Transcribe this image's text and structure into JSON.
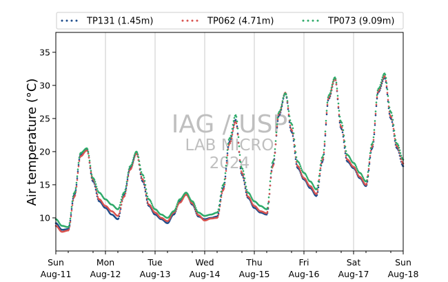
{
  "chart_data": {
    "type": "scatter",
    "title": "",
    "xlabel": "",
    "ylabel": "Air temperature (°C)",
    "xlim": [
      "2024-08-11 00:00",
      "2024-08-18 00:00"
    ],
    "ylim": [
      5,
      38
    ],
    "yticks": [
      10,
      15,
      20,
      25,
      30,
      35
    ],
    "xticks": [
      {
        "day": "Sun",
        "date": "Aug-11"
      },
      {
        "day": "Mon",
        "date": "Aug-12"
      },
      {
        "day": "Tue",
        "date": "Aug-13"
      },
      {
        "day": "Wed",
        "date": "Aug-14"
      },
      {
        "day": "Thu",
        "date": "Aug-15"
      },
      {
        "day": "Fri",
        "date": "Aug-16"
      },
      {
        "day": "Sat",
        "date": "Aug-17"
      },
      {
        "day": "Sun",
        "date": "Aug-18"
      }
    ],
    "grid": "vertical",
    "legend_position": "top",
    "watermark": [
      "IAG / USP",
      "LAB MICRO",
      "2024"
    ],
    "series": [
      {
        "name": "TP131 (1.45m)",
        "color": "#1f4e8c",
        "points": [
          [
            "2024-08-11 00:00",
            9.2
          ],
          [
            "2024-08-11 03:00",
            8.2
          ],
          [
            "2024-08-11 06:00",
            8.3
          ],
          [
            "2024-08-11 09:00",
            13.5
          ],
          [
            "2024-08-11 12:00",
            19.5
          ],
          [
            "2024-08-11 15:00",
            20.3
          ],
          [
            "2024-08-11 18:00",
            15.5
          ],
          [
            "2024-08-11 21:00",
            12.5
          ],
          [
            "2024-08-12 00:00",
            11.5
          ],
          [
            "2024-08-12 03:00",
            10.5
          ],
          [
            "2024-08-12 06:00",
            9.8
          ],
          [
            "2024-08-12 09:00",
            13.5
          ],
          [
            "2024-08-12 12:00",
            17.5
          ],
          [
            "2024-08-12 15:00",
            19.8
          ],
          [
            "2024-08-12 18:00",
            15.5
          ],
          [
            "2024-08-12 21:00",
            11.8
          ],
          [
            "2024-08-13 00:00",
            10.5
          ],
          [
            "2024-08-13 03:00",
            9.8
          ],
          [
            "2024-08-13 06:00",
            9.2
          ],
          [
            "2024-08-13 09:00",
            10.5
          ],
          [
            "2024-08-13 12:00",
            12.5
          ],
          [
            "2024-08-13 15:00",
            13.8
          ],
          [
            "2024-08-13 18:00",
            12.0
          ],
          [
            "2024-08-13 21:00",
            10.2
          ],
          [
            "2024-08-14 00:00",
            9.8
          ],
          [
            "2024-08-14 03:00",
            10.0
          ],
          [
            "2024-08-14 06:00",
            10.2
          ],
          [
            "2024-08-14 09:00",
            14.5
          ],
          [
            "2024-08-14 12:00",
            21.5
          ],
          [
            "2024-08-14 15:00",
            24.8
          ],
          [
            "2024-08-14 18:00",
            16.5
          ],
          [
            "2024-08-14 21:00",
            13.0
          ],
          [
            "2024-08-15 00:00",
            11.5
          ],
          [
            "2024-08-15 03:00",
            10.8
          ],
          [
            "2024-08-15 06:00",
            10.5
          ],
          [
            "2024-08-15 09:00",
            18.0
          ],
          [
            "2024-08-15 12:00",
            25.5
          ],
          [
            "2024-08-15 15:00",
            28.8
          ],
          [
            "2024-08-15 18:00",
            23.0
          ],
          [
            "2024-08-15 21:00",
            17.5
          ],
          [
            "2024-08-16 00:00",
            15.8
          ],
          [
            "2024-08-16 03:00",
            14.5
          ],
          [
            "2024-08-16 06:00",
            13.3
          ],
          [
            "2024-08-16 09:00",
            18.5
          ],
          [
            "2024-08-16 12:00",
            28.0
          ],
          [
            "2024-08-16 15:00",
            31.0
          ],
          [
            "2024-08-16 18:00",
            23.5
          ],
          [
            "2024-08-16 21:00",
            18.5
          ],
          [
            "2024-08-17 00:00",
            17.5
          ],
          [
            "2024-08-17 03:00",
            16.0
          ],
          [
            "2024-08-17 06:00",
            14.8
          ],
          [
            "2024-08-17 09:00",
            20.5
          ],
          [
            "2024-08-17 12:00",
            29.0
          ],
          [
            "2024-08-17 15:00",
            31.2
          ],
          [
            "2024-08-17 18:00",
            25.0
          ],
          [
            "2024-08-17 21:00",
            20.5
          ],
          [
            "2024-08-18 00:00",
            17.8
          ]
        ]
      },
      {
        "name": "TP062 (4.71m)",
        "color": "#d9534f",
        "points": [
          [
            "2024-08-11 00:00",
            8.8
          ],
          [
            "2024-08-11 03:00",
            7.9
          ],
          [
            "2024-08-11 06:00",
            8.1
          ],
          [
            "2024-08-11 09:00",
            13.2
          ],
          [
            "2024-08-11 12:00",
            19.3
          ],
          [
            "2024-08-11 15:00",
            20.2
          ],
          [
            "2024-08-11 18:00",
            15.8
          ],
          [
            "2024-08-11 21:00",
            12.8
          ],
          [
            "2024-08-12 00:00",
            11.8
          ],
          [
            "2024-08-12 03:00",
            11.0
          ],
          [
            "2024-08-12 06:00",
            10.3
          ],
          [
            "2024-08-12 09:00",
            13.2
          ],
          [
            "2024-08-12 12:00",
            17.3
          ],
          [
            "2024-08-12 15:00",
            19.7
          ],
          [
            "2024-08-12 18:00",
            15.8
          ],
          [
            "2024-08-12 21:00",
            12.0
          ],
          [
            "2024-08-13 00:00",
            10.8
          ],
          [
            "2024-08-13 03:00",
            10.0
          ],
          [
            "2024-08-13 06:00",
            9.5
          ],
          [
            "2024-08-13 09:00",
            10.8
          ],
          [
            "2024-08-13 12:00",
            12.3
          ],
          [
            "2024-08-13 15:00",
            13.5
          ],
          [
            "2024-08-13 18:00",
            12.2
          ],
          [
            "2024-08-13 21:00",
            10.4
          ],
          [
            "2024-08-14 00:00",
            9.6
          ],
          [
            "2024-08-14 03:00",
            9.9
          ],
          [
            "2024-08-14 06:00",
            10.0
          ],
          [
            "2024-08-14 09:00",
            14.2
          ],
          [
            "2024-08-14 12:00",
            21.2
          ],
          [
            "2024-08-14 15:00",
            24.5
          ],
          [
            "2024-08-14 18:00",
            16.8
          ],
          [
            "2024-08-14 21:00",
            13.2
          ],
          [
            "2024-08-15 00:00",
            11.8
          ],
          [
            "2024-08-15 03:00",
            11.0
          ],
          [
            "2024-08-15 06:00",
            10.7
          ],
          [
            "2024-08-15 09:00",
            17.8
          ],
          [
            "2024-08-15 12:00",
            25.8
          ],
          [
            "2024-08-15 15:00",
            28.9
          ],
          [
            "2024-08-15 18:00",
            23.3
          ],
          [
            "2024-08-15 21:00",
            17.8
          ],
          [
            "2024-08-16 00:00",
            16.0
          ],
          [
            "2024-08-16 03:00",
            14.8
          ],
          [
            "2024-08-16 06:00",
            13.6
          ],
          [
            "2024-08-16 09:00",
            18.8
          ],
          [
            "2024-08-16 12:00",
            28.2
          ],
          [
            "2024-08-16 15:00",
            31.0
          ],
          [
            "2024-08-16 18:00",
            23.8
          ],
          [
            "2024-08-16 21:00",
            18.8
          ],
          [
            "2024-08-17 00:00",
            17.7
          ],
          [
            "2024-08-17 03:00",
            16.2
          ],
          [
            "2024-08-17 06:00",
            15.0
          ],
          [
            "2024-08-17 09:00",
            20.8
          ],
          [
            "2024-08-17 12:00",
            29.2
          ],
          [
            "2024-08-17 15:00",
            31.4
          ],
          [
            "2024-08-17 18:00",
            25.3
          ],
          [
            "2024-08-17 21:00",
            20.8
          ],
          [
            "2024-08-18 00:00",
            18.2
          ]
        ]
      },
      {
        "name": "TP073 (9.09m)",
        "color": "#2eaa6a",
        "points": [
          [
            "2024-08-11 00:00",
            9.8
          ],
          [
            "2024-08-11 03:00",
            8.8
          ],
          [
            "2024-08-11 06:00",
            8.6
          ],
          [
            "2024-08-11 09:00",
            13.8
          ],
          [
            "2024-08-11 12:00",
            19.8
          ],
          [
            "2024-08-11 15:00",
            20.5
          ],
          [
            "2024-08-11 18:00",
            16.0
          ],
          [
            "2024-08-11 21:00",
            13.8
          ],
          [
            "2024-08-12 00:00",
            12.8
          ],
          [
            "2024-08-12 03:00",
            12.0
          ],
          [
            "2024-08-12 06:00",
            11.3
          ],
          [
            "2024-08-12 09:00",
            13.8
          ],
          [
            "2024-08-12 12:00",
            17.8
          ],
          [
            "2024-08-12 15:00",
            20.0
          ],
          [
            "2024-08-12 18:00",
            16.5
          ],
          [
            "2024-08-12 21:00",
            12.8
          ],
          [
            "2024-08-13 00:00",
            11.3
          ],
          [
            "2024-08-13 03:00",
            10.5
          ],
          [
            "2024-08-13 06:00",
            10.0
          ],
          [
            "2024-08-13 09:00",
            11.0
          ],
          [
            "2024-08-13 12:00",
            12.8
          ],
          [
            "2024-08-13 15:00",
            13.8
          ],
          [
            "2024-08-13 18:00",
            12.5
          ],
          [
            "2024-08-13 21:00",
            10.8
          ],
          [
            "2024-08-14 00:00",
            10.3
          ],
          [
            "2024-08-14 03:00",
            10.5
          ],
          [
            "2024-08-14 06:00",
            10.8
          ],
          [
            "2024-08-14 09:00",
            15.0
          ],
          [
            "2024-08-14 12:00",
            22.0
          ],
          [
            "2024-08-14 15:00",
            25.5
          ],
          [
            "2024-08-14 18:00",
            17.5
          ],
          [
            "2024-08-14 21:00",
            13.8
          ],
          [
            "2024-08-15 00:00",
            12.5
          ],
          [
            "2024-08-15 03:00",
            11.8
          ],
          [
            "2024-08-15 06:00",
            11.3
          ],
          [
            "2024-08-15 09:00",
            18.5
          ],
          [
            "2024-08-15 12:00",
            26.0
          ],
          [
            "2024-08-15 15:00",
            28.8
          ],
          [
            "2024-08-15 18:00",
            24.2
          ],
          [
            "2024-08-15 21:00",
            18.5
          ],
          [
            "2024-08-16 00:00",
            16.8
          ],
          [
            "2024-08-16 03:00",
            15.5
          ],
          [
            "2024-08-16 06:00",
            14.3
          ],
          [
            "2024-08-16 09:00",
            19.2
          ],
          [
            "2024-08-16 12:00",
            28.5
          ],
          [
            "2024-08-16 15:00",
            31.2
          ],
          [
            "2024-08-16 18:00",
            24.5
          ],
          [
            "2024-08-16 21:00",
            19.5
          ],
          [
            "2024-08-17 00:00",
            18.3
          ],
          [
            "2024-08-17 03:00",
            16.8
          ],
          [
            "2024-08-17 06:00",
            15.5
          ],
          [
            "2024-08-17 09:00",
            21.2
          ],
          [
            "2024-08-17 12:00",
            29.5
          ],
          [
            "2024-08-17 15:00",
            31.8
          ],
          [
            "2024-08-17 18:00",
            26.0
          ],
          [
            "2024-08-17 21:00",
            21.2
          ],
          [
            "2024-08-18 00:00",
            18.8
          ]
        ]
      }
    ]
  }
}
